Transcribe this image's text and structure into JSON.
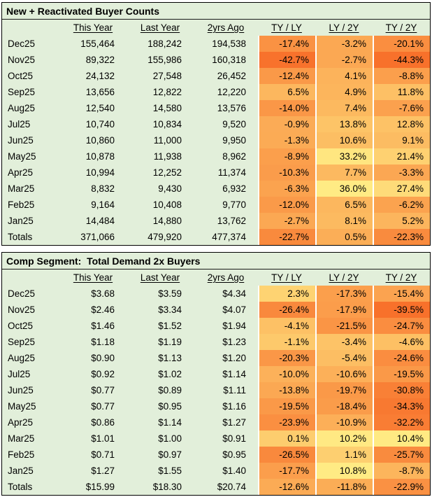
{
  "style": {
    "page_bg": "#FFFFFF",
    "table_bg": "#E2EFDA",
    "table_border": "#000000",
    "text_color": "#000000",
    "heat_min_color": "#F8712B",
    "heat_max_color": "#FFEB84"
  },
  "chart_data": [
    {
      "type": "table",
      "title": "New + Reactivated Buyer Counts",
      "columns": [
        "",
        "This Year",
        "Last Year",
        "2yrs Ago",
        "TY / LY",
        "LY / 2Y",
        "TY / 2Y"
      ],
      "heatmap": {
        "applies_to": [
          "TY / LY",
          "LY / 2Y",
          "TY / 2Y"
        ],
        "scale": "min-max within table, orange (low) to yellow (high)"
      },
      "rows": [
        {
          "label": "Dec25",
          "values": [
            "155,464",
            "188,242",
            "194,538"
          ],
          "pcts": [
            -17.4,
            -3.2,
            -20.1
          ]
        },
        {
          "label": "Nov25",
          "values": [
            "89,322",
            "155,986",
            "160,318"
          ],
          "pcts": [
            -42.7,
            -2.7,
            -44.3
          ]
        },
        {
          "label": "Oct25",
          "values": [
            "24,132",
            "27,548",
            "26,452"
          ],
          "pcts": [
            -12.4,
            4.1,
            -8.8
          ]
        },
        {
          "label": "Sep25",
          "values": [
            "13,656",
            "12,822",
            "12,220"
          ],
          "pcts": [
            6.5,
            4.9,
            11.8
          ]
        },
        {
          "label": "Aug25",
          "values": [
            "12,540",
            "14,580",
            "13,576"
          ],
          "pcts": [
            -14.0,
            7.4,
            -7.6
          ]
        },
        {
          "label": "Jul25",
          "values": [
            "10,740",
            "10,834",
            "9,520"
          ],
          "pcts": [
            -0.9,
            13.8,
            12.8
          ]
        },
        {
          "label": "Jun25",
          "values": [
            "10,860",
            "11,000",
            "9,950"
          ],
          "pcts": [
            -1.3,
            10.6,
            9.1
          ]
        },
        {
          "label": "May25",
          "values": [
            "10,878",
            "11,938",
            "8,962"
          ],
          "pcts": [
            -8.9,
            33.2,
            21.4
          ]
        },
        {
          "label": "Apr25",
          "values": [
            "10,994",
            "12,252",
            "11,374"
          ],
          "pcts": [
            -10.3,
            7.7,
            -3.3
          ]
        },
        {
          "label": "Mar25",
          "values": [
            "8,832",
            "9,430",
            "6,932"
          ],
          "pcts": [
            -6.3,
            36.0,
            27.4
          ]
        },
        {
          "label": "Feb25",
          "values": [
            "9,164",
            "10,408",
            "9,770"
          ],
          "pcts": [
            -12.0,
            6.5,
            -6.2
          ]
        },
        {
          "label": "Jan25",
          "values": [
            "14,484",
            "14,880",
            "13,762"
          ],
          "pcts": [
            -2.7,
            8.1,
            5.2
          ]
        },
        {
          "label": "Totals",
          "values": [
            "371,066",
            "479,920",
            "477,374"
          ],
          "pcts": [
            -22.7,
            0.5,
            -22.3
          ]
        }
      ]
    },
    {
      "type": "table",
      "title": "Comp Segment:  Total Demand 2x Buyers",
      "columns": [
        "",
        "This Year",
        "Last Year",
        "2yrs Ago",
        "TY / LY",
        "LY / 2Y",
        "TY / 2Y"
      ],
      "heatmap": {
        "applies_to": [
          "TY / LY",
          "LY / 2Y",
          "TY / 2Y"
        ],
        "scale": "min-max within table, orange (low) to yellow (high)"
      },
      "rows": [
        {
          "label": "Dec25",
          "values": [
            "$3.68",
            "$3.59",
            "$4.34"
          ],
          "pcts": [
            2.3,
            -17.3,
            -15.4
          ]
        },
        {
          "label": "Nov25",
          "values": [
            "$2.46",
            "$3.34",
            "$4.07"
          ],
          "pcts": [
            -26.4,
            -17.9,
            -39.5
          ]
        },
        {
          "label": "Oct25",
          "values": [
            "$1.46",
            "$1.52",
            "$1.94"
          ],
          "pcts": [
            -4.1,
            -21.5,
            -24.7
          ]
        },
        {
          "label": "Sep25",
          "values": [
            "$1.18",
            "$1.19",
            "$1.23"
          ],
          "pcts": [
            -1.1,
            -3.4,
            -4.6
          ]
        },
        {
          "label": "Aug25",
          "values": [
            "$0.90",
            "$1.13",
            "$1.20"
          ],
          "pcts": [
            -20.3,
            -5.4,
            -24.6
          ]
        },
        {
          "label": "Jul25",
          "values": [
            "$0.92",
            "$1.02",
            "$1.14"
          ],
          "pcts": [
            -10.0,
            -10.6,
            -19.5
          ]
        },
        {
          "label": "Jun25",
          "values": [
            "$0.77",
            "$0.89",
            "$1.11"
          ],
          "pcts": [
            -13.8,
            -19.7,
            -30.8
          ]
        },
        {
          "label": "May25",
          "values": [
            "$0.77",
            "$0.95",
            "$1.16"
          ],
          "pcts": [
            -19.5,
            -18.4,
            -34.3
          ]
        },
        {
          "label": "Apr25",
          "values": [
            "$0.86",
            "$1.14",
            "$1.27"
          ],
          "pcts": [
            -23.9,
            -10.9,
            -32.2
          ]
        },
        {
          "label": "Mar25",
          "values": [
            "$1.01",
            "$1.00",
            "$0.91"
          ],
          "pcts": [
            0.1,
            10.2,
            10.4
          ]
        },
        {
          "label": "Feb25",
          "values": [
            "$0.71",
            "$0.97",
            "$0.95"
          ],
          "pcts": [
            -26.5,
            1.1,
            -25.7
          ]
        },
        {
          "label": "Jan25",
          "values": [
            "$1.27",
            "$1.55",
            "$1.40"
          ],
          "pcts": [
            -17.7,
            10.8,
            -8.7
          ]
        },
        {
          "label": "Totals",
          "values": [
            "$15.99",
            "$18.30",
            "$20.74"
          ],
          "pcts": [
            -12.6,
            -11.8,
            -22.9
          ]
        }
      ]
    }
  ]
}
